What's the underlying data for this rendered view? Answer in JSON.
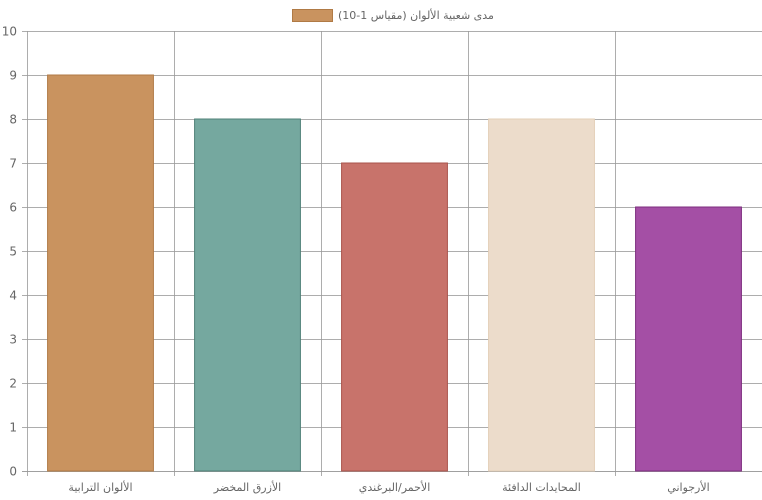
{
  "chart_data": {
    "type": "bar",
    "categories": [
      "الألوان الترابية",
      "الأزرق المخضر",
      "الأحمر/البرغندي",
      "المحايدات الدافئة",
      "الأرجواني"
    ],
    "series": [
      {
        "name": "مدى شعبية الألوان (مقياس 1-10)",
        "values": [
          9,
          8,
          7,
          8,
          6
        ]
      }
    ],
    "ylim": [
      0,
      10
    ],
    "yticks": [
      "0",
      "1",
      "2",
      "3",
      "4",
      "5",
      "6",
      "7",
      "8",
      "9",
      "10"
    ],
    "grid": true,
    "legend": "top",
    "colors": [
      "#c9935f",
      "#75a89f",
      "#c8736b",
      "#ecdccb",
      "#a44fa5"
    ],
    "border_colors": [
      "#b07a45",
      "#4f8077",
      "#a9534b",
      "#e3cfb7",
      "#7d2c7e"
    ],
    "legend_color": "#c9935f"
  }
}
